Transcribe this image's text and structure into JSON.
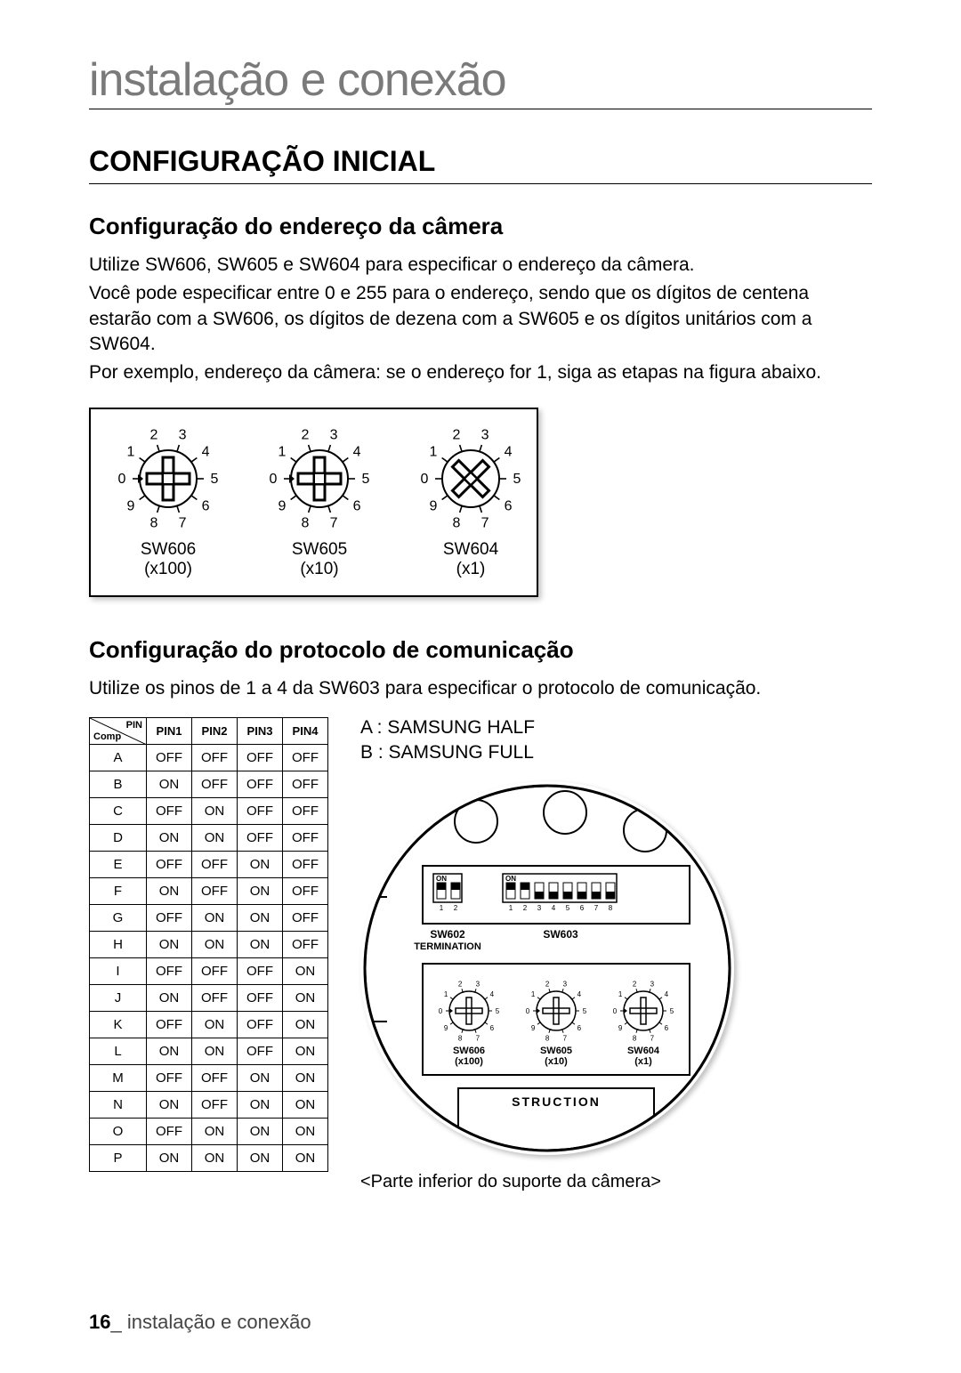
{
  "page_header": "instalação e conexão",
  "main_title": "CONFIGURAÇÃO INICIAL",
  "section1": {
    "title": "Configuração do endereço da câmera",
    "p1": "Utilize SW606, SW605 e SW604 para especificar o endereço da câmera.",
    "p2": "Você pode especificar entre 0 e 255 para o endereço, sendo que os dígitos de centena estarão com a SW606, os dígitos de dezena com a SW605 e os dígitos unitários com a SW604.",
    "p3": "Por exemplo, endereço da câmera: se o endereço for 1, siga as etapas na figura abaixo."
  },
  "dials": [
    {
      "name": "SW606",
      "mult": "(x100)",
      "type": "plus"
    },
    {
      "name": "SW605",
      "mult": "(x10)",
      "type": "plus"
    },
    {
      "name": "SW604",
      "mult": "(x1)",
      "type": "x"
    }
  ],
  "dial_numbers": [
    "0",
    "1",
    "2",
    "3",
    "4",
    "5",
    "6",
    "7",
    "8",
    "9"
  ],
  "section2": {
    "title": "Configuração do protocolo de comunicação",
    "p1": "Utilize os pinos de 1 a 4 da SW603 para especificar o protocolo de comunicação."
  },
  "pin_table": {
    "corner_top": "PIN",
    "corner_bottom": "Comp",
    "headers": [
      "PIN1",
      "PIN2",
      "PIN3",
      "PIN4"
    ],
    "rows": [
      {
        "c": "A",
        "v": [
          "OFF",
          "OFF",
          "OFF",
          "OFF"
        ]
      },
      {
        "c": "B",
        "v": [
          "ON",
          "OFF",
          "OFF",
          "OFF"
        ]
      },
      {
        "c": "C",
        "v": [
          "OFF",
          "ON",
          "OFF",
          "OFF"
        ]
      },
      {
        "c": "D",
        "v": [
          "ON",
          "ON",
          "OFF",
          "OFF"
        ]
      },
      {
        "c": "E",
        "v": [
          "OFF",
          "OFF",
          "ON",
          "OFF"
        ]
      },
      {
        "c": "F",
        "v": [
          "ON",
          "OFF",
          "ON",
          "OFF"
        ]
      },
      {
        "c": "G",
        "v": [
          "OFF",
          "ON",
          "ON",
          "OFF"
        ]
      },
      {
        "c": "H",
        "v": [
          "ON",
          "ON",
          "ON",
          "OFF"
        ]
      },
      {
        "c": "I",
        "v": [
          "OFF",
          "OFF",
          "OFF",
          "ON"
        ]
      },
      {
        "c": "J",
        "v": [
          "ON",
          "OFF",
          "OFF",
          "ON"
        ]
      },
      {
        "c": "K",
        "v": [
          "OFF",
          "ON",
          "OFF",
          "ON"
        ]
      },
      {
        "c": "L",
        "v": [
          "ON",
          "ON",
          "OFF",
          "ON"
        ]
      },
      {
        "c": "M",
        "v": [
          "OFF",
          "OFF",
          "ON",
          "ON"
        ]
      },
      {
        "c": "N",
        "v": [
          "ON",
          "OFF",
          "ON",
          "ON"
        ]
      },
      {
        "c": "O",
        "v": [
          "OFF",
          "ON",
          "ON",
          "ON"
        ]
      },
      {
        "c": "P",
        "v": [
          "ON",
          "ON",
          "ON",
          "ON"
        ]
      }
    ]
  },
  "legend": {
    "a": "A : SAMSUNG HALF",
    "b": "B : SAMSUNG FULL"
  },
  "board": {
    "caption": "<Parte inferior do suporte da câmera>",
    "sw602_on": "ON",
    "sw602_label": "SW602",
    "sw602_sub": "TERMINATION",
    "sw603_on": "ON",
    "sw603_label": "SW603",
    "sw603_nums": [
      "1",
      "2",
      "3",
      "4",
      "5",
      "6",
      "7",
      "8"
    ],
    "sw602_nums": [
      "1",
      "2"
    ],
    "rotaries": [
      {
        "name": "SW606",
        "mult": "(x100)"
      },
      {
        "name": "SW605",
        "mult": "(x10)"
      },
      {
        "name": "SW604",
        "mult": "(x1)"
      }
    ],
    "struction": "STRUCTION"
  },
  "footer": {
    "page_num": "16",
    "sep": "_",
    "text": "instalação e conexão"
  },
  "colors": {
    "text": "#000000",
    "muted": "#7a7a7a",
    "bg": "#ffffff",
    "border": "#000000"
  }
}
